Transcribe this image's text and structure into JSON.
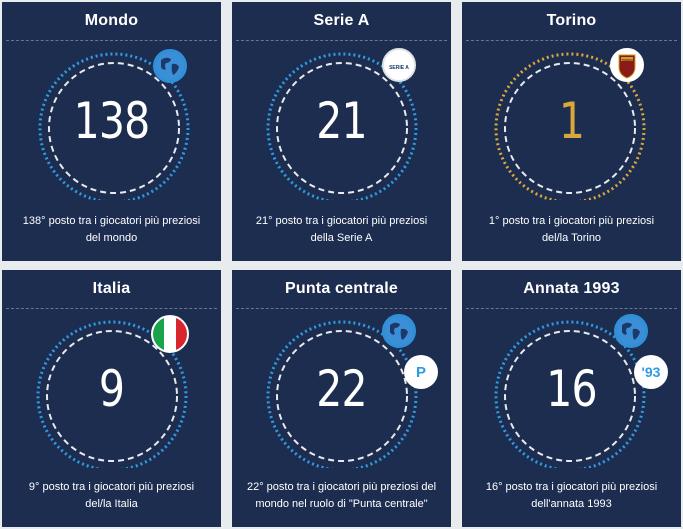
{
  "colors": {
    "card_bg": "#1d2d50",
    "page_bg": "#e9ecef",
    "ring_blue": "#2f9be3",
    "ring_white": "#ffffff",
    "gold": "#d9a83a",
    "badge_blue": "#2f9be3"
  },
  "cards": [
    {
      "title": "Mondo",
      "value": "138",
      "desc": "138° posto tra i giocatori più preziosi del mondo",
      "badge": "globe-icon",
      "gold": false
    },
    {
      "title": "Serie A",
      "value": "21",
      "desc": "21° posto tra i giocatori più preziosi della Serie A",
      "badge": "serie-a-logo-icon",
      "badge_text": "SERIE A",
      "gold": false
    },
    {
      "title": "Torino",
      "value": "1",
      "desc": "1° posto tra i giocatori più preziosi del/la Torino",
      "badge": "torino-crest-icon",
      "badge_text": "TORINO",
      "gold": true
    },
    {
      "title": "Italia",
      "value": "9",
      "desc": "9° posto tra i giocatori più preziosi del/la Italia",
      "badge": "italy-flag-icon",
      "gold": false
    },
    {
      "title": "Punta centrale",
      "value": "22",
      "desc": "22° posto tra i giocatori più preziosi del mondo nel ruolo di \"Punta centrale\"",
      "badge": "globe-icon",
      "badge2_text": "P",
      "gold": false
    },
    {
      "title": "Annata 1993",
      "value": "16",
      "desc": "16° posto tra i giocatori più preziosi dell'annata 1993",
      "badge": "globe-icon",
      "badge2_text": "'93",
      "gold": false
    }
  ]
}
